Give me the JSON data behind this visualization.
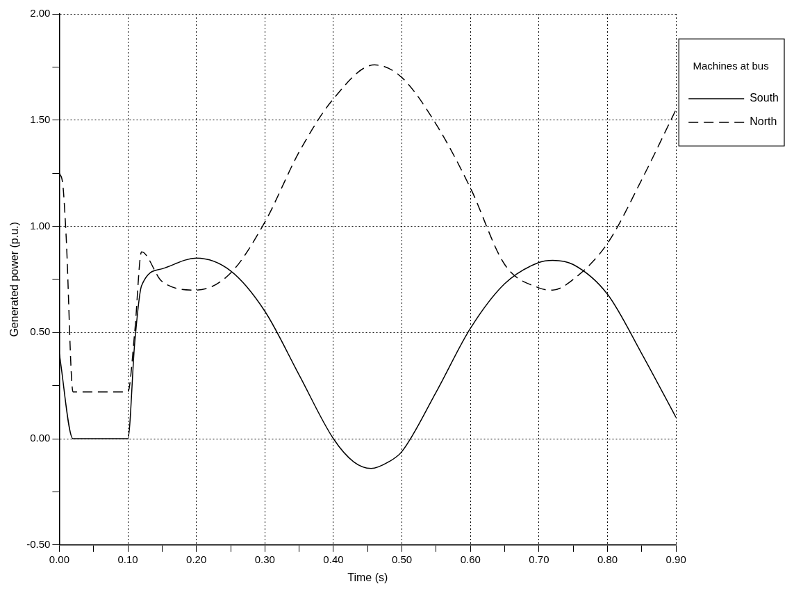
{
  "chart_data": {
    "type": "line",
    "xlabel": "Time (s)",
    "ylabel": "Generated power (p.u.)",
    "legend_title": "Machines at bus",
    "legend": "right",
    "grid": true,
    "xlim": [
      0,
      0.9
    ],
    "ylim": [
      -0.5,
      2
    ],
    "xticks": [
      {
        "value": 0,
        "label": "0.00"
      },
      {
        "value": 0.05,
        "label": null
      },
      {
        "value": 0.1,
        "label": "0.10"
      },
      {
        "value": 0.15,
        "label": null
      },
      {
        "value": 0.2,
        "label": "0.20"
      },
      {
        "value": 0.25,
        "label": null
      },
      {
        "value": 0.3,
        "label": "0.30"
      },
      {
        "value": 0.35,
        "label": null
      },
      {
        "value": 0.4,
        "label": "0.40"
      },
      {
        "value": 0.45,
        "label": null
      },
      {
        "value": 0.5,
        "label": "0.50"
      },
      {
        "value": 0.55,
        "label": null
      },
      {
        "value": 0.6,
        "label": "0.60"
      },
      {
        "value": 0.65,
        "label": null
      },
      {
        "value": 0.7,
        "label": "0.70"
      },
      {
        "value": 0.75,
        "label": null
      },
      {
        "value": 0.8,
        "label": "0.80"
      },
      {
        "value": 0.85,
        "label": null
      },
      {
        "value": 0.9,
        "label": "0.90"
      }
    ],
    "yticks": [
      {
        "value": -0.5,
        "label": "-0.50"
      },
      {
        "value": -0.25,
        "label": null
      },
      {
        "value": 0,
        "label": "0.00"
      },
      {
        "value": 0.25,
        "label": null
      },
      {
        "value": 0.5,
        "label": "0.50"
      },
      {
        "value": 0.75,
        "label": null
      },
      {
        "value": 1,
        "label": "1.00"
      },
      {
        "value": 1.25,
        "label": null
      },
      {
        "value": 1.5,
        "label": "1.50"
      },
      {
        "value": 1.75,
        "label": null
      },
      {
        "value": 2,
        "label": "2.00"
      }
    ],
    "series": [
      {
        "name": "South",
        "color": "#000000",
        "line_style": "solid",
        "x": [
          0,
          0.02,
          0.1,
          0.11,
          0.12,
          0.15,
          0.2,
          0.25,
          0.3,
          0.35,
          0.4,
          0.43,
          0.455,
          0.48,
          0.5,
          0.55,
          0.6,
          0.65,
          0.7,
          0.72,
          0.75,
          0.8,
          0.85,
          0.9
        ],
        "values": [
          0.4,
          0,
          0,
          0.45,
          0.72,
          0.8,
          0.85,
          0.79,
          0.6,
          0.3,
          0,
          -0.11,
          -0.14,
          -0.11,
          -0.06,
          0.22,
          0.52,
          0.73,
          0.83,
          0.84,
          0.82,
          0.68,
          0.4,
          0.1
        ]
      },
      {
        "name": "North",
        "color": "#000000",
        "line_style": "dashed",
        "x": [
          0,
          0.005,
          0.01,
          0.02,
          0.1,
          0.11,
          0.12,
          0.15,
          0.2,
          0.25,
          0.3,
          0.35,
          0.4,
          0.46,
          0.5,
          0.55,
          0.6,
          0.65,
          0.7,
          0.72,
          0.75,
          0.8,
          0.85,
          0.9
        ],
        "values": [
          1.25,
          1.2,
          0.95,
          0.22,
          0.22,
          0.5,
          0.88,
          0.74,
          0.7,
          0.78,
          1.02,
          1.35,
          1.6,
          1.76,
          1.7,
          1.48,
          1.18,
          0.82,
          0.71,
          0.7,
          0.75,
          0.92,
          1.22,
          1.55
        ]
      }
    ]
  }
}
